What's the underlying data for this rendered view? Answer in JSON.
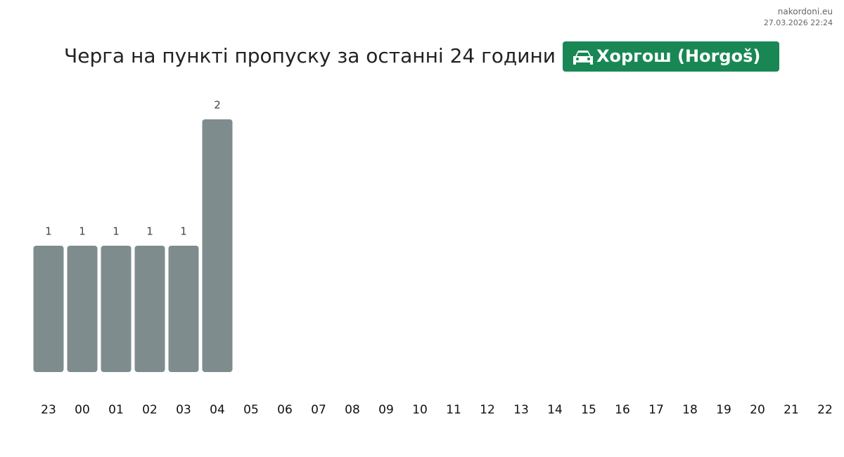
{
  "chart_data": {
    "type": "bar",
    "title": "Черга на пункті пропуску за останні 24 години",
    "badge": "Хоргош (Horgoš)",
    "source": "nakordoni.eu",
    "timestamp": "27.03.2026 22:24",
    "categories": [
      "23",
      "00",
      "01",
      "02",
      "03",
      "04",
      "05",
      "06",
      "07",
      "08",
      "09",
      "10",
      "11",
      "12",
      "13",
      "14",
      "15",
      "16",
      "17",
      "18",
      "19",
      "20",
      "21",
      "22"
    ],
    "values": [
      1,
      1,
      1,
      1,
      1,
      2,
      null,
      null,
      null,
      null,
      null,
      null,
      null,
      null,
      null,
      null,
      null,
      null,
      null,
      null,
      null,
      null,
      null,
      null
    ],
    "color": "#7f8c8d"
  }
}
